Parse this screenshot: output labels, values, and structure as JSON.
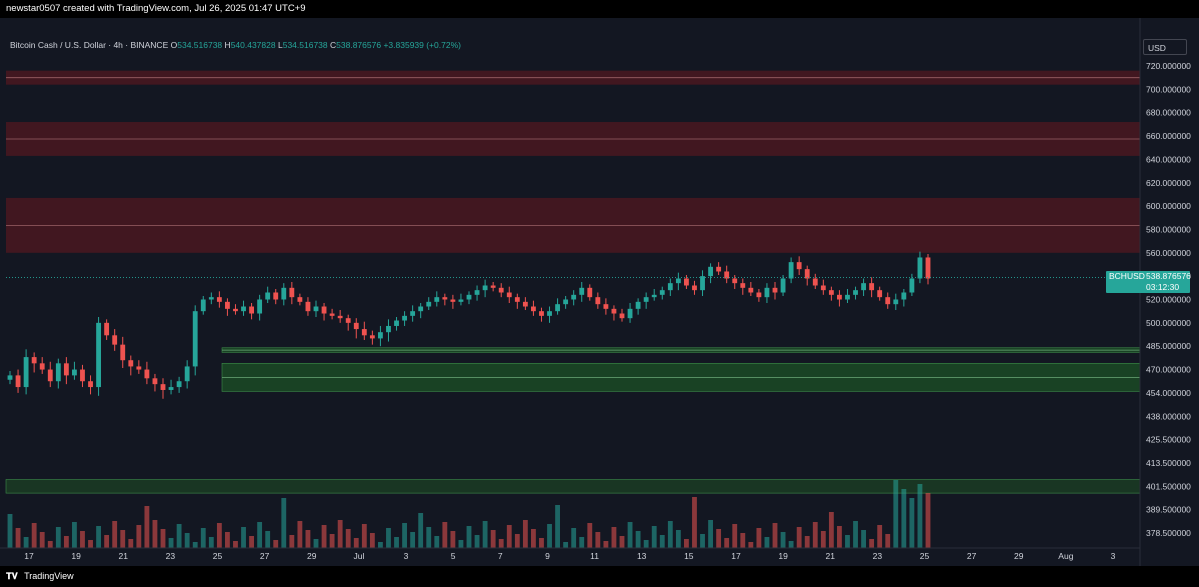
{
  "header": {
    "attribution": "newstar0507 created with TradingView.com, Jul 26, 2025 01:47 UTC+9"
  },
  "legend": {
    "symbol_desc": "Bitcoin Cash / U.S. Dollar · 4h · BINANCE",
    "o_label": "O",
    "o_value": "534.516738",
    "h_label": "H",
    "h_value": "540.437828",
    "l_label": "L",
    "l_value": "534.516738",
    "c_label": "C",
    "c_value": "538.876576",
    "change": "+3.835939 (+0.72%)"
  },
  "currency_button": "USD",
  "price_tag": {
    "symbol": "BCHUSD",
    "price": "538.876576",
    "countdown": "03:12:30"
  },
  "footer": {
    "brand": "TradingView",
    "logo_icon": "tradingview-logo-icon"
  },
  "colors": {
    "up": "#26a69a",
    "down": "#ef5350",
    "background": "#131722",
    "resistance_zone": "#4a1820",
    "support_zone": "#1b4a24"
  },
  "chart_data": {
    "type": "candlestick",
    "symbol": "BCHUSD",
    "timeframe": "4h",
    "last_price": 538.876576,
    "y_axis_ticks": [
      "720.000000",
      "700.000000",
      "680.000000",
      "660.000000",
      "640.000000",
      "620.000000",
      "600.000000",
      "580.000000",
      "560.000000",
      "540.000000",
      "520.000000",
      "500.000000",
      "485.000000",
      "470.000000",
      "454.000000",
      "438.000000",
      "425.500000",
      "413.500000",
      "401.500000",
      "389.500000",
      "378.500000"
    ],
    "x_axis_ticks": [
      "17",
      "19",
      "21",
      "23",
      "25",
      "27",
      "29",
      "Jul",
      "3",
      "5",
      "7",
      "9",
      "11",
      "13",
      "15",
      "17",
      "19",
      "21",
      "23",
      "25",
      "27",
      "29",
      "Aug",
      "3"
    ],
    "resistance_zones": [
      [
        704,
        716
      ],
      [
        643,
        672
      ],
      [
        560,
        607
      ]
    ],
    "support_zones": [
      [
        481,
        484
      ],
      [
        455,
        474
      ]
    ],
    "volume_zone": [
      398,
      405
    ],
    "approx_closes": [
      466,
      458,
      478,
      474,
      470,
      462,
      474,
      466,
      470,
      462,
      458,
      500,
      492,
      486,
      476,
      472,
      470,
      464,
      460,
      456,
      458,
      462,
      472,
      510,
      520,
      522,
      518,
      512,
      510,
      514,
      508,
      520,
      526,
      520,
      530,
      522,
      518,
      510,
      514,
      508,
      506,
      504,
      500,
      496,
      492,
      490,
      494,
      498,
      502,
      506,
      510,
      514,
      518,
      522,
      520,
      518,
      520,
      524,
      528,
      532,
      530,
      526,
      522,
      518,
      514,
      510,
      506,
      510,
      516,
      520,
      524,
      530,
      522,
      516,
      512,
      508,
      504,
      512,
      518,
      522,
      524,
      528,
      534,
      538,
      532,
      528,
      540,
      548,
      544,
      538,
      534,
      530,
      526,
      522,
      530,
      526,
      538,
      552,
      546,
      538,
      532,
      528,
      524,
      520,
      524,
      528,
      534,
      528,
      522,
      516,
      520,
      526,
      538,
      556,
      538
    ]
  }
}
